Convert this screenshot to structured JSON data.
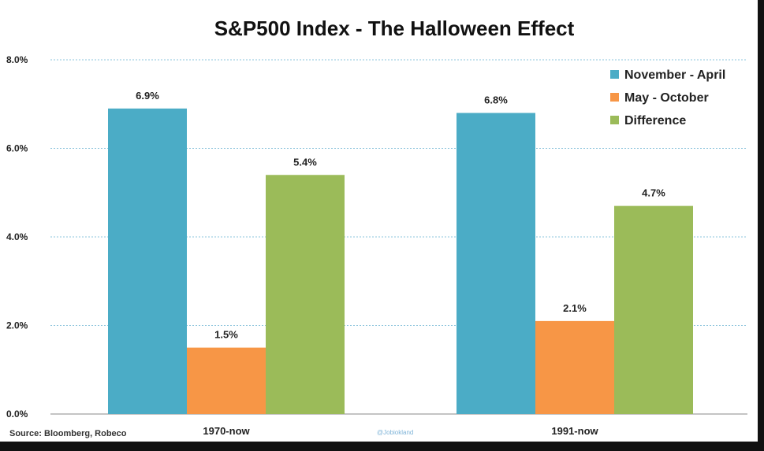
{
  "chart_data": {
    "type": "bar",
    "title": "S&P500 Index - The Halloween Effect",
    "categories": [
      "1970-now",
      "1991-now"
    ],
    "series": [
      {
        "name": "November - April",
        "values": [
          6.9,
          6.8
        ],
        "labels": [
          "6.9%",
          "6.8%"
        ],
        "color": "#4bacc6"
      },
      {
        "name": "May - October",
        "values": [
          1.5,
          2.1
        ],
        "labels": [
          "1.5%",
          "2.1%"
        ],
        "color": "#f79646"
      },
      {
        "name": "Difference",
        "values": [
          5.4,
          4.7
        ],
        "labels": [
          "5.4%",
          "4.7%"
        ],
        "color": "#9bbb59"
      }
    ],
    "yticks": [
      "0.0%",
      "2.0%",
      "4.0%",
      "6.0%",
      "8.0%"
    ],
    "ylim": [
      0,
      8
    ],
    "grid": true,
    "legend": "top-right"
  },
  "source": "Source: Bloomberg, Robeco",
  "watermark": "@Jobiokland"
}
